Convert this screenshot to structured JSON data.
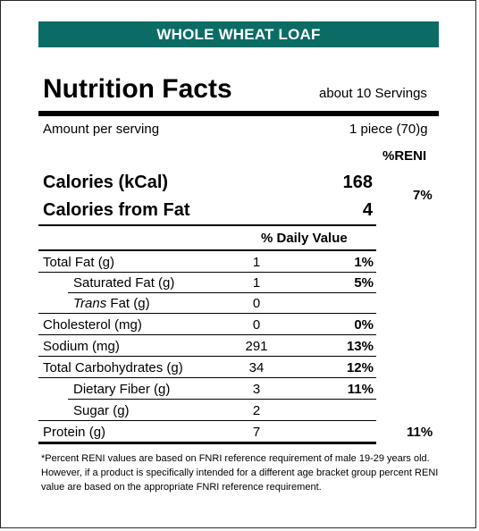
{
  "banner": "WHOLE WHEAT LOAF",
  "title": "Nutrition Facts",
  "servings": "about 10 Servings",
  "amount_label": "Amount per serving",
  "serving_size": "1 piece (70)g",
  "reni_header": "%RENI",
  "calories": {
    "label": "Calories (kCal)",
    "value": "168",
    "fat_label": "Calories from Fat",
    "fat_value": "4",
    "reni": "7%"
  },
  "daily_value_header": "% Daily Value",
  "nutrients": [
    {
      "label": "Total Fat (g)",
      "amount": "1",
      "dv": "1%"
    },
    {
      "label": "Saturated Fat (g)",
      "amount": "1",
      "dv": "5%"
    },
    {
      "label_italic": "Trans",
      "label_rest": " Fat (g)",
      "amount": "0",
      "dv": ""
    },
    {
      "label": "Cholesterol (mg)",
      "amount": "0",
      "dv": "0%"
    },
    {
      "label": "Sodium (mg)",
      "amount": "291",
      "dv": "13%"
    },
    {
      "label": "Total Carbohydrates (g)",
      "amount": "34",
      "dv": "12%"
    },
    {
      "label": "Dietary Fiber (g)",
      "amount": "3",
      "dv": "11%"
    },
    {
      "label": "Sugar (g)",
      "amount": "2",
      "dv": ""
    },
    {
      "label": "Protein (g)",
      "amount": "7",
      "dv": "",
      "reni": "11%"
    }
  ],
  "footnote": "*Percent RENI values are based on FNRI reference requirement of male 19-29 years old. However, if a product is specifically intended for a different age bracket group percent RENI value are based on the appropriate FNRI reference requirement.",
  "colors": {
    "banner_bg": "#0b6c66"
  }
}
